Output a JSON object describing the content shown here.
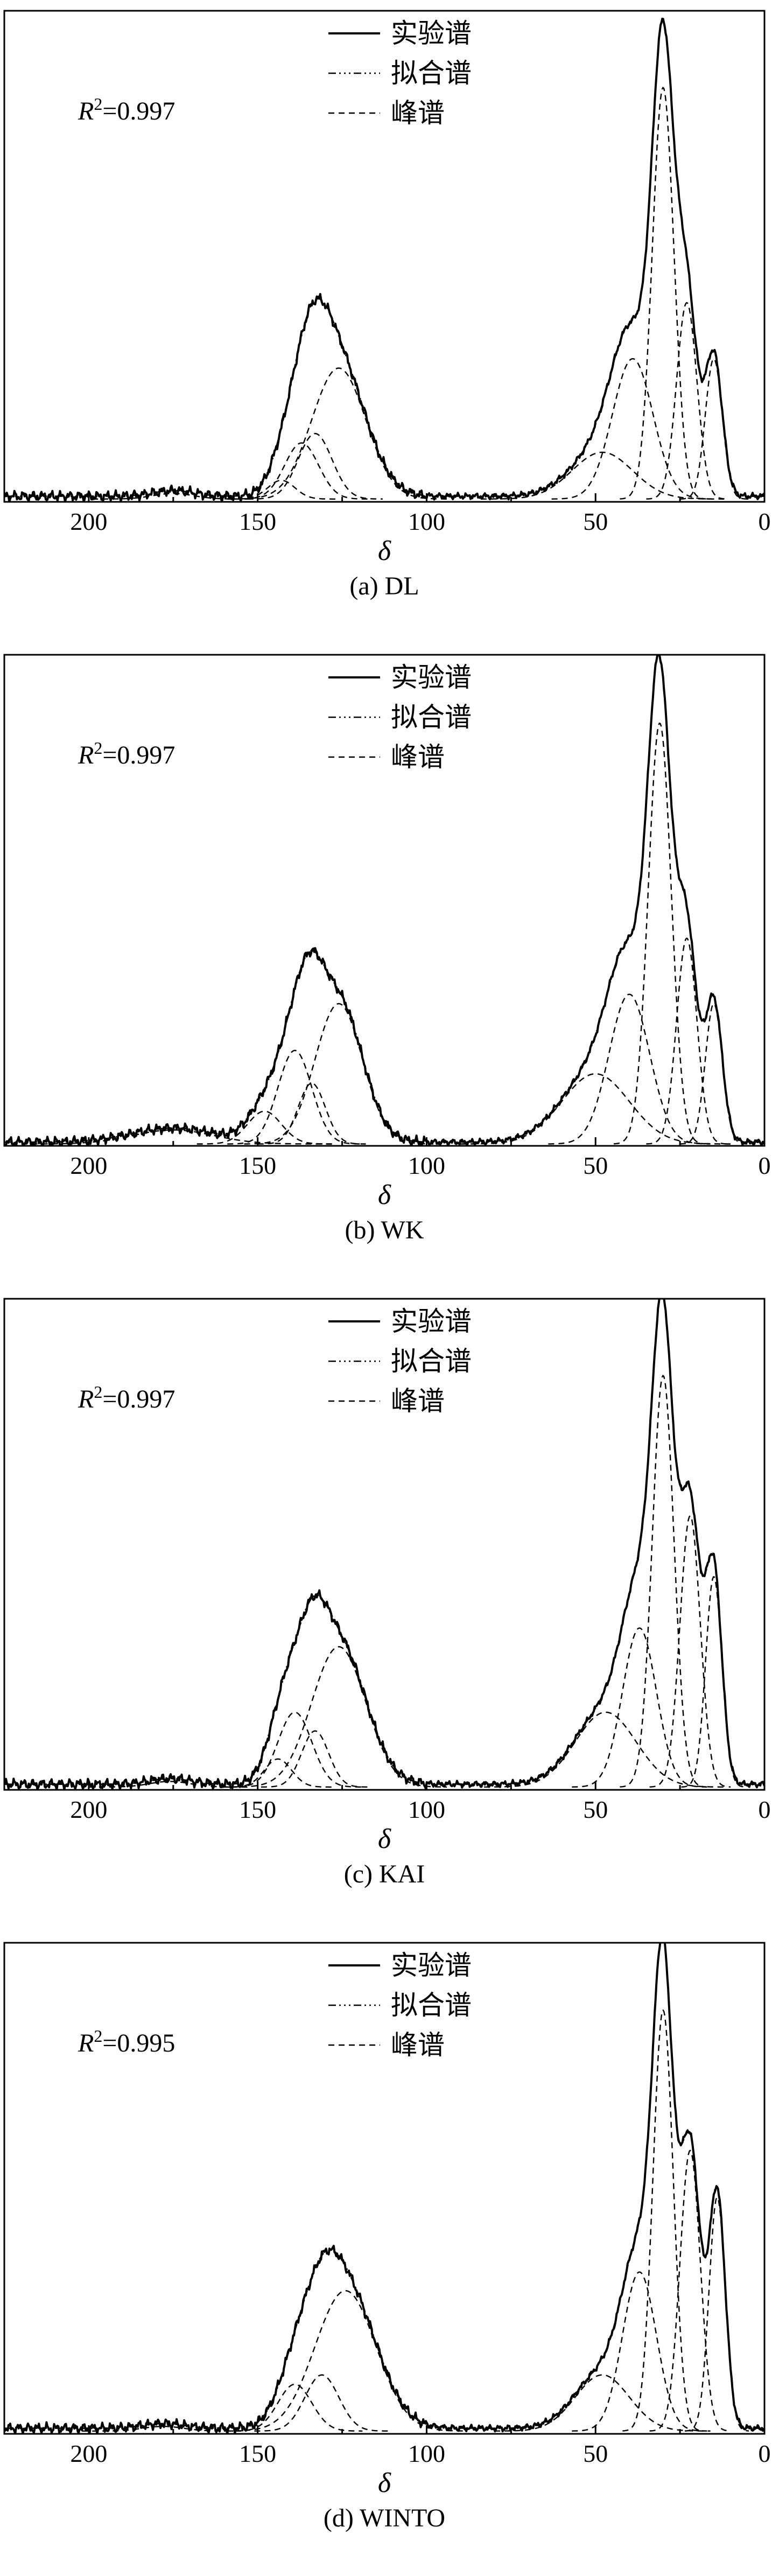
{
  "chart_data": [
    {
      "type": "line",
      "caption": "(a) DL",
      "annotation_prefix": "R",
      "annotation_exp": "2",
      "annotation_value": "=0.997",
      "xlabel": "δ",
      "xlim": [
        225,
        0
      ],
      "reversed_x": true,
      "xticks": [
        "200",
        "150",
        "100",
        "50",
        "0"
      ],
      "xtick_values": [
        200,
        150,
        100,
        50,
        0
      ],
      "legend": [
        "实验谱",
        "拟合谱",
        "峰谱"
      ],
      "legend_position": "top-center",
      "ylim": [
        0,
        1.05
      ],
      "baseline": 0.012,
      "peaks": [
        {
          "c": 175,
          "a": 0.012,
          "w": 6
        },
        {
          "c": 143,
          "a": 0.04,
          "w": 4
        },
        {
          "c": 137,
          "a": 0.12,
          "w": 5
        },
        {
          "c": 133,
          "a": 0.14,
          "w": 5
        },
        {
          "c": 126,
          "a": 0.28,
          "w": 8
        },
        {
          "c": 48,
          "a": 0.1,
          "w": 9
        },
        {
          "c": 39,
          "a": 0.3,
          "w": 6
        },
        {
          "c": 30,
          "a": 0.88,
          "w": 3.2
        },
        {
          "c": 23,
          "a": 0.42,
          "w": 3
        },
        {
          "c": 15,
          "a": 0.3,
          "w": 2.5
        }
      ]
    },
    {
      "type": "line",
      "caption": "(b) WK",
      "annotation_prefix": "R",
      "annotation_exp": "2",
      "annotation_value": "=0.997",
      "xlabel": "δ",
      "xlim": [
        225,
        0
      ],
      "reversed_x": true,
      "xticks": [
        "200",
        "150",
        "100",
        "50",
        "0"
      ],
      "xtick_values": [
        200,
        150,
        100,
        50,
        0
      ],
      "legend": [
        "实验谱",
        "拟合谱",
        "峰谱"
      ],
      "legend_position": "top-center",
      "ylim": [
        0,
        1.05
      ],
      "baseline": 0.008,
      "peaks": [
        {
          "c": 175,
          "a": 0.03,
          "w": 12
        },
        {
          "c": 148,
          "a": 0.07,
          "w": 5
        },
        {
          "c": 139,
          "a": 0.2,
          "w": 5
        },
        {
          "c": 134,
          "a": 0.13,
          "w": 4
        },
        {
          "c": 126,
          "a": 0.3,
          "w": 7
        },
        {
          "c": 50,
          "a": 0.15,
          "w": 10
        },
        {
          "c": 40,
          "a": 0.32,
          "w": 6
        },
        {
          "c": 31,
          "a": 0.9,
          "w": 3.4
        },
        {
          "c": 23,
          "a": 0.44,
          "w": 3
        },
        {
          "c": 15,
          "a": 0.3,
          "w": 2.5
        }
      ]
    },
    {
      "type": "line",
      "caption": "(c) KAI",
      "annotation_prefix": "R",
      "annotation_exp": "2",
      "annotation_value": "=0.997",
      "xlabel": "δ",
      "xlim": [
        225,
        0
      ],
      "reversed_x": true,
      "xticks": [
        "200",
        "150",
        "100",
        "50",
        "0"
      ],
      "xtick_values": [
        200,
        150,
        100,
        50,
        0
      ],
      "legend": [
        "实验谱",
        "拟合谱",
        "峰谱"
      ],
      "legend_position": "top-center",
      "ylim": [
        0,
        1.05
      ],
      "baseline": 0.012,
      "peaks": [
        {
          "c": 176,
          "a": 0.012,
          "w": 6
        },
        {
          "c": 144,
          "a": 0.06,
          "w": 4
        },
        {
          "c": 139,
          "a": 0.16,
          "w": 5
        },
        {
          "c": 133,
          "a": 0.12,
          "w": 4
        },
        {
          "c": 126,
          "a": 0.3,
          "w": 8
        },
        {
          "c": 47,
          "a": 0.16,
          "w": 9
        },
        {
          "c": 37,
          "a": 0.34,
          "w": 5
        },
        {
          "c": 30,
          "a": 0.88,
          "w": 3.2
        },
        {
          "c": 22,
          "a": 0.58,
          "w": 3
        },
        {
          "c": 15,
          "a": 0.45,
          "w": 2.4
        }
      ]
    },
    {
      "type": "line",
      "caption": "(d) WINTO",
      "annotation_prefix": "R",
      "annotation_exp": "2",
      "annotation_value": "=0.995",
      "xlabel": "δ",
      "xlim": [
        225,
        0
      ],
      "reversed_x": true,
      "xticks": [
        "200",
        "150",
        "100",
        "50",
        "0"
      ],
      "xtick_values": [
        200,
        150,
        100,
        50,
        0
      ],
      "legend": [
        "实验谱",
        "拟合谱",
        "峰谱"
      ],
      "legend_position": "top-center",
      "ylim": [
        0,
        1.05
      ],
      "baseline": 0.012,
      "peaks": [
        {
          "c": 178,
          "a": 0.01,
          "w": 6
        },
        {
          "c": 139,
          "a": 0.1,
          "w": 5
        },
        {
          "c": 131,
          "a": 0.12,
          "w": 5
        },
        {
          "c": 124,
          "a": 0.3,
          "w": 9
        },
        {
          "c": 48,
          "a": 0.12,
          "w": 8
        },
        {
          "c": 37,
          "a": 0.34,
          "w": 5
        },
        {
          "c": 30,
          "a": 0.9,
          "w": 3
        },
        {
          "c": 22,
          "a": 0.6,
          "w": 3
        },
        {
          "c": 14,
          "a": 0.5,
          "w": 2.4
        }
      ]
    }
  ]
}
